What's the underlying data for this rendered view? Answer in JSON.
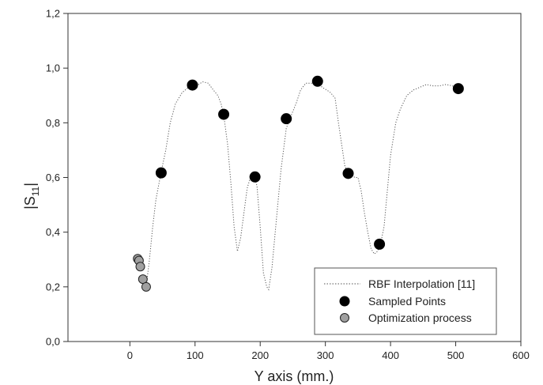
{
  "chart_data": {
    "type": "scatter",
    "title": "",
    "xlabel": "Y axis (mm.)",
    "ylabel_main": "|S",
    "ylabel_sub": "11",
    "ylabel_end": "|",
    "xlim": [
      -95,
      600
    ],
    "ylim": [
      0.0,
      1.2
    ],
    "xticks": [
      0,
      100,
      200,
      300,
      400,
      500,
      600
    ],
    "xtick_labels": [
      "0",
      "100",
      "200",
      "300",
      "400",
      "500",
      "600"
    ],
    "yticks": [
      0.0,
      0.2,
      0.4,
      0.6,
      0.8,
      1.0,
      1.2
    ],
    "ytick_labels": [
      "0,0",
      "0,2",
      "0,4",
      "0,6",
      "0,8",
      "1,0",
      "1,2"
    ],
    "grid": false,
    "legend_position": "bottom-right",
    "series": [
      {
        "name": "RBF Interpolation [11]",
        "style": "dotted-line",
        "color": "#555555",
        "x": [
          25,
          30,
          35,
          40,
          48,
          55,
          62,
          70,
          80,
          90,
          96,
          105,
          112,
          120,
          128,
          135,
          140,
          144,
          150,
          155,
          160,
          165,
          170,
          175,
          180,
          185,
          190,
          195,
          200,
          205,
          210,
          213,
          218,
          225,
          232,
          240,
          248,
          255,
          262,
          270,
          280,
          288,
          295,
          302,
          308,
          315,
          320,
          325,
          330,
          335,
          340,
          345,
          350,
          355,
          360,
          365,
          370,
          375,
          380,
          385,
          390,
          395,
          400,
          408,
          415,
          425,
          435,
          445,
          455,
          465,
          475,
          485,
          495,
          504
        ],
        "y": [
          0.2,
          0.3,
          0.42,
          0.52,
          0.62,
          0.7,
          0.8,
          0.87,
          0.91,
          0.93,
          0.94,
          0.94,
          0.95,
          0.945,
          0.92,
          0.9,
          0.87,
          0.83,
          0.72,
          0.58,
          0.42,
          0.33,
          0.38,
          0.47,
          0.56,
          0.6,
          0.61,
          0.57,
          0.42,
          0.25,
          0.2,
          0.19,
          0.27,
          0.45,
          0.63,
          0.78,
          0.83,
          0.87,
          0.92,
          0.945,
          0.945,
          0.95,
          0.93,
          0.92,
          0.91,
          0.89,
          0.8,
          0.72,
          0.64,
          0.62,
          0.61,
          0.6,
          0.6,
          0.55,
          0.47,
          0.4,
          0.34,
          0.32,
          0.33,
          0.36,
          0.42,
          0.55,
          0.68,
          0.8,
          0.85,
          0.9,
          0.92,
          0.93,
          0.94,
          0.935,
          0.935,
          0.94,
          0.935,
          0.925
        ]
      },
      {
        "name": "Sampled Points",
        "style": "marker",
        "color": "#000000",
        "x": [
          48,
          96,
          144,
          192,
          240,
          288,
          335,
          383,
          504
        ],
        "y": [
          0.617,
          0.938,
          0.831,
          0.602,
          0.815,
          0.952,
          0.615,
          0.356,
          0.925
        ]
      },
      {
        "name": "Optimization process",
        "style": "marker",
        "color": "#a0a0a0",
        "x": [
          12,
          14,
          16,
          20,
          25
        ],
        "y": [
          0.303,
          0.296,
          0.274,
          0.228,
          0.2
        ]
      }
    ]
  }
}
